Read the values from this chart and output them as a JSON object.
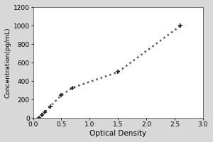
{
  "x": [
    0.1,
    0.15,
    0.2,
    0.3,
    0.5,
    0.7,
    1.5,
    2.6
  ],
  "y": [
    0,
    31,
    62,
    125,
    250,
    330,
    500,
    1000
  ],
  "xlabel": "Optical Density",
  "ylabel": "Concentration(pg/mL)",
  "xlim": [
    0,
    3
  ],
  "ylim": [
    0,
    1200
  ],
  "xticks": [
    0,
    0.5,
    1,
    1.5,
    2,
    2.5,
    3
  ],
  "yticks": [
    0,
    200,
    400,
    600,
    800,
    1000,
    1200
  ],
  "line_color": "#555555",
  "marker": "+",
  "marker_color": "#222222",
  "marker_size": 5,
  "line_style": "dotted",
  "line_width": 1.8,
  "bg_color": "#d8d8d8",
  "plot_bg_color": "#ffffff",
  "border_color": "#aaaaaa"
}
